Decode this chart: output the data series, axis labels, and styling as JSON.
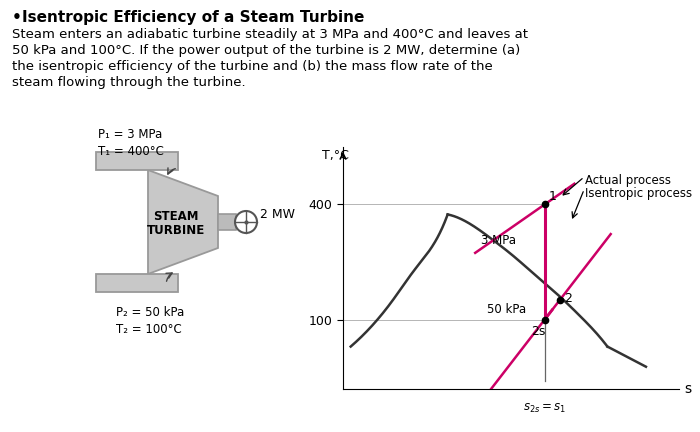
{
  "title_bullet": "Isentropic Efficiency of a Steam Turbine",
  "body_lines": [
    "Steam enters an adiabatic turbine steadily at 3 MPa and 400°C and leaves at",
    "50 kPa and 100°C. If the power output of the turbine is 2 MW, determine (a)",
    "the isentropic efficiency of the turbine and (b) the mass flow rate of the",
    "steam flowing through the turbine."
  ],
  "turbine_labels": {
    "inlet": "P₁ = 3 MPa\nT₁ = 400°C",
    "outlet": "P₂ = 50 kPa\nT₂ = 100°C",
    "center": "STEAM\nTURBINE",
    "power": "2 MW"
  },
  "ts_diagram": {
    "xlabel": "s",
    "ylabel": "T,°C",
    "label_3MPa": "3 MPa",
    "label_50kPa": "50 kPa",
    "point1_label": "1",
    "point2_label": "2",
    "point2s_label": "2s",
    "actual_label": "Actual process",
    "isentropic_label": "Isentropic process",
    "s2s_label": "s₂s = s₁"
  },
  "colors": {
    "background": "#ffffff",
    "text": "#000000",
    "turbine_fill": "#c8c8c8",
    "turbine_edge": "#999999",
    "pink": "#cc0066",
    "dark_curve": "#333333"
  }
}
